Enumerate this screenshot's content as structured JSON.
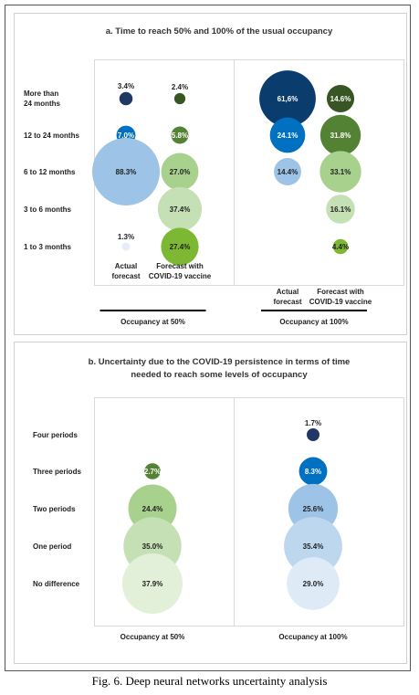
{
  "chart_data": [
    {
      "type": "bubble",
      "title": "a. Time to reach 50% and 100% of the usual occupancy",
      "categories": [
        "More than\n24 months",
        "12 to 24 months",
        "6 to 12 months",
        "3 to 6 months",
        "1 to 3 months"
      ],
      "groups": [
        {
          "label": "Occupancy at 50%",
          "series": [
            {
              "name": "Actual\nforecast",
              "values": [
                3.4,
                7.0,
                88.3,
                null,
                1.3
              ],
              "value_labels": [
                "3.4%",
                "7.0%",
                "88.3%",
                null,
                "1.3%"
              ],
              "colors": [
                "#1f3864",
                "#0070c0",
                "#9dc3e6",
                null,
                "#e4edf8"
              ]
            },
            {
              "name": "Forecast with\nCOVID-19 vaccine",
              "values": [
                2.4,
                5.8,
                27.0,
                37.4,
                27.4
              ],
              "value_labels": [
                "2.4%",
                "5.8%",
                "27.0%",
                "37.4%",
                "27.4%"
              ],
              "colors": [
                "#375623",
                "#548235",
                "#a9d18e",
                "#c5e0b4",
                "#7cb832"
              ]
            }
          ]
        },
        {
          "label": "Occupancy at 100%",
          "series": [
            {
              "name": "Actual\nforecast",
              "values": [
                61.6,
                24.1,
                14.4,
                null,
                null
              ],
              "value_labels": [
                "61,6%",
                "24.1%",
                "14.4%",
                null,
                null
              ],
              "colors": [
                "#0b3c6e",
                "#0070c0",
                "#9dc3e6",
                null,
                null
              ]
            },
            {
              "name": "Forecast with\nCOVID-19 vaccine",
              "values": [
                14.6,
                31.8,
                33.1,
                16.1,
                4.4
              ],
              "value_labels": [
                "14.6%",
                "31.8%",
                "33.1%",
                "16.1%",
                "4.4%"
              ],
              "colors": [
                "#375623",
                "#548235",
                "#a9d18e",
                "#c5e0b4",
                "#7cb832"
              ]
            }
          ]
        }
      ]
    },
    {
      "type": "bubble",
      "title": "b. Uncertainty due to the COVID-19 persistence in terms of time\nneeded to reach some levels of occupancy",
      "categories": [
        "Four periods",
        "Three periods",
        "Two periods",
        "One period",
        "No difference"
      ],
      "groups": [
        {
          "label": "Occupancy at 50%",
          "series": [
            {
              "values": [
                null,
                2.7,
                24.4,
                35.0,
                37.9
              ],
              "value_labels": [
                null,
                "2.7%",
                "24.4%",
                "35.0%",
                "37.9%"
              ],
              "colors": [
                null,
                "#548235",
                "#a9d18e",
                "#c5e0b4",
                "#e2efd9"
              ]
            }
          ]
        },
        {
          "label": "Occupancy at 100%",
          "series": [
            {
              "values": [
                1.7,
                8.3,
                25.6,
                35.4,
                29.0
              ],
              "value_labels": [
                "1.7%",
                "8.3%",
                "25.6%",
                "35.4%",
                "29.0%"
              ],
              "colors": [
                "#1f3864",
                "#0070c0",
                "#9dc3e6",
                "#bdd7ee",
                "#deebf7"
              ]
            }
          ]
        }
      ]
    }
  ],
  "caption": "Fig. 6. Deep neural networks uncertainty analysis"
}
